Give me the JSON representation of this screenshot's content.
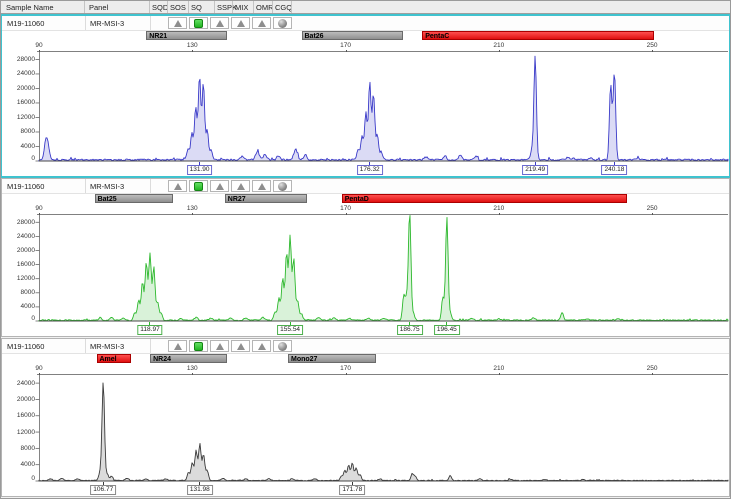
{
  "header": {
    "columns": [
      "Sample Name",
      "Panel",
      "SQD",
      "SOS",
      "SQ",
      "SSPK",
      "MIX",
      "OMR",
      "CGQ"
    ]
  },
  "colors": {
    "selection": "#3fc3cf",
    "marker_gray": "#a2a2a2",
    "marker_red": "#ee2020"
  },
  "panels": [
    {
      "sample_name": "M19-11060",
      "panel_name": "MR-MSI-3",
      "selected": true,
      "flags": [
        {
          "column": "SQD",
          "icon": "blank"
        },
        {
          "column": "SOS",
          "icon": "triangle-icon"
        },
        {
          "column": "SQ",
          "icon": "green-square-icon"
        },
        {
          "column": "SSPK",
          "icon": "triangle-icon"
        },
        {
          "column": "MIX",
          "icon": "triangle-icon"
        },
        {
          "column": "OMR",
          "icon": "triangle-icon"
        },
        {
          "column": "CGQ",
          "icon": "sphere-icon"
        }
      ],
      "markers": [
        {
          "label": "NR21",
          "range_bp": [
            118,
            139
          ],
          "color": "gray"
        },
        {
          "label": "Bat26",
          "range_bp": [
            158.5,
            185
          ],
          "color": "gray"
        },
        {
          "label": "PentaC",
          "range_bp": [
            190,
            250.5
          ],
          "color": "red"
        }
      ]
    },
    {
      "sample_name": "M19-11060",
      "panel_name": "MR-MSI-3",
      "selected": false,
      "flags": [
        {
          "column": "SQD",
          "icon": "blank"
        },
        {
          "column": "SOS",
          "icon": "triangle-icon"
        },
        {
          "column": "SQ",
          "icon": "green-square-icon"
        },
        {
          "column": "SSPK",
          "icon": "triangle-icon"
        },
        {
          "column": "MIX",
          "icon": "triangle-icon"
        },
        {
          "column": "OMR",
          "icon": "triangle-icon"
        },
        {
          "column": "CGQ",
          "icon": "sphere-icon"
        }
      ],
      "markers": [
        {
          "label": "Bat25",
          "range_bp": [
            104.5,
            125
          ],
          "color": "gray"
        },
        {
          "label": "NR27",
          "range_bp": [
            138.5,
            160
          ],
          "color": "gray"
        },
        {
          "label": "PentaD",
          "range_bp": [
            169,
            243.5
          ],
          "color": "red"
        }
      ]
    },
    {
      "sample_name": "M19-11060",
      "panel_name": "MR-MSI-3",
      "selected": false,
      "flags": [
        {
          "column": "SQD",
          "icon": "blank"
        },
        {
          "column": "SOS",
          "icon": "triangle-icon"
        },
        {
          "column": "SQ",
          "icon": "green-square-icon"
        },
        {
          "column": "SSPK",
          "icon": "triangle-icon"
        },
        {
          "column": "MIX",
          "icon": "triangle-icon"
        },
        {
          "column": "OMR",
          "icon": "triangle-icon"
        },
        {
          "column": "CGQ",
          "icon": "sphere-icon"
        }
      ],
      "markers": [
        {
          "label": "Amel",
          "range_bp": [
            105,
            114
          ],
          "color": "red"
        },
        {
          "label": "NR24",
          "range_bp": [
            119,
            139
          ],
          "color": "gray"
        },
        {
          "label": "Mono27",
          "range_bp": [
            155,
            178
          ],
          "color": "gray"
        }
      ]
    }
  ],
  "chart_data": [
    {
      "type": "line",
      "dye": "blue",
      "color": "#3a3ac8",
      "label_border": "#6a6ad0",
      "x_ticks": [
        90,
        130,
        170,
        210,
        250
      ],
      "x_range_bp": [
        90,
        270
      ],
      "y_ticks": [
        0,
        4000,
        8000,
        12000,
        16000,
        20000,
        24000,
        28000
      ],
      "y_max": 29500,
      "noise_amp": 550,
      "seed": 7,
      "peaks": [
        [
          92,
          6200,
          2.0
        ],
        [
          128.9,
          3000
        ],
        [
          129.9,
          7500
        ],
        [
          130.9,
          14500
        ],
        [
          131.9,
          23200
        ],
        [
          132.9,
          21000
        ],
        [
          133.9,
          8200
        ],
        [
          134.9,
          2600
        ],
        [
          143,
          900,
          1.6
        ],
        [
          147,
          2400,
          1.8
        ],
        [
          149,
          1600,
          1.6
        ],
        [
          152.5,
          1200,
          1.6
        ],
        [
          157,
          2900,
          1.8
        ],
        [
          159.5,
          1400,
          1.6
        ],
        [
          173.3,
          2800
        ],
        [
          174.3,
          6500
        ],
        [
          175.3,
          13200
        ],
        [
          176.32,
          21200
        ],
        [
          177.3,
          18300
        ],
        [
          178.3,
          6800
        ],
        [
          179.3,
          2200
        ],
        [
          191,
          800,
          1.6
        ],
        [
          196,
          1000,
          1.6
        ],
        [
          200,
          1400,
          1.6
        ],
        [
          204,
          900,
          1.6
        ],
        [
          218.6,
          2600
        ],
        [
          219.49,
          28800
        ],
        [
          228,
          700,
          1.6
        ],
        [
          234,
          600,
          1.6
        ],
        [
          239.2,
          20500
        ],
        [
          240.18,
          24200
        ],
        [
          246,
          500,
          1.6
        ]
      ],
      "peak_labels": [
        {
          "text": "131.90",
          "bp": 131.9
        },
        {
          "text": "176.32",
          "bp": 176.32
        },
        {
          "text": "219.49",
          "bp": 219.49
        },
        {
          "text": "240.18",
          "bp": 240.18
        }
      ]
    },
    {
      "type": "line",
      "dye": "green",
      "color": "#2db82d",
      "label_border": "#4db04d",
      "x_ticks": [
        90,
        130,
        170,
        210,
        250
      ],
      "x_range_bp": [
        90,
        270
      ],
      "y_ticks": [
        0,
        4000,
        8000,
        12000,
        16000,
        20000,
        24000,
        28000
      ],
      "y_max": 29500,
      "noise_amp": 380,
      "seed": 13,
      "peaks": [
        [
          106,
          600,
          1.6
        ],
        [
          109,
          800,
          1.6
        ],
        [
          112,
          600,
          1.6
        ],
        [
          115,
          2100
        ],
        [
          116,
          5600
        ],
        [
          117,
          10800
        ],
        [
          118,
          16200
        ],
        [
          118.97,
          18800
        ],
        [
          119.97,
          15200
        ],
        [
          120.97,
          5200
        ],
        [
          121.9,
          1900
        ],
        [
          127,
          600,
          1.6
        ],
        [
          131,
          800,
          1.6
        ],
        [
          135,
          700,
          1.6
        ],
        [
          140,
          600,
          1.6
        ],
        [
          144,
          700,
          1.6
        ],
        [
          148.5,
          800,
          1.6
        ],
        [
          151.6,
          2300
        ],
        [
          152.6,
          6200
        ],
        [
          153.6,
          11800
        ],
        [
          154.6,
          18800
        ],
        [
          155.54,
          23600
        ],
        [
          156.5,
          17400
        ],
        [
          157.5,
          5600
        ],
        [
          158.5,
          1900
        ],
        [
          163,
          700,
          1.6
        ],
        [
          167,
          600,
          1.6
        ],
        [
          171,
          500,
          1.6
        ],
        [
          176,
          600,
          1.6
        ],
        [
          180,
          500,
          1.6
        ],
        [
          185.2,
          6900
        ],
        [
          185.95,
          5900
        ],
        [
          186.75,
          30800
        ],
        [
          187.7,
          1900
        ],
        [
          195.4,
          6400
        ],
        [
          196.45,
          29200
        ],
        [
          197.4,
          1700
        ],
        [
          203,
          500,
          1.6
        ],
        [
          210,
          400,
          1.6
        ],
        [
          219,
          700,
          1.6
        ],
        [
          226.5,
          2300
        ],
        [
          233,
          400,
          1.6
        ],
        [
          241,
          350,
          1.6
        ]
      ],
      "peak_labels": [
        {
          "text": "118.97",
          "bp": 118.97
        },
        {
          "text": "155.54",
          "bp": 155.54
        },
        {
          "text": "186.75",
          "bp": 186.75
        },
        {
          "text": "196.45",
          "bp": 196.45
        }
      ]
    },
    {
      "type": "line",
      "dye": "black",
      "color": "#3a3a3a",
      "label_border": "#8a8a8a",
      "x_ticks": [
        90,
        130,
        170,
        210,
        250
      ],
      "x_range_bp": [
        90,
        270
      ],
      "y_ticks": [
        0,
        4000,
        8000,
        12000,
        16000,
        20000,
        24000
      ],
      "y_max": 25500,
      "noise_amp": 220,
      "seed": 21,
      "peaks": [
        [
          93,
          400,
          1.6
        ],
        [
          96,
          500,
          1.6
        ],
        [
          100,
          400,
          1.6
        ],
        [
          105.9,
          1900
        ],
        [
          106.77,
          24300
        ],
        [
          107.8,
          1600
        ],
        [
          108.9,
          1100
        ],
        [
          113,
          500,
          1.6
        ],
        [
          118,
          400,
          1.6
        ],
        [
          123,
          400,
          1.6
        ],
        [
          129,
          1900
        ],
        [
          130,
          4300
        ],
        [
          131,
          7300
        ],
        [
          131.98,
          8900
        ],
        [
          132.95,
          6300
        ],
        [
          133.9,
          2500
        ],
        [
          138,
          500,
          1.6
        ],
        [
          144,
          400,
          1.6
        ],
        [
          150,
          400,
          1.6
        ],
        [
          156,
          400,
          1.6
        ],
        [
          162,
          400,
          1.6
        ],
        [
          168.9,
          1100
        ],
        [
          169.8,
          2400
        ],
        [
          170.8,
          3700
        ],
        [
          171.78,
          4300
        ],
        [
          172.8,
          3100
        ],
        [
          173.8,
          1400
        ],
        [
          179,
          400,
          1.6
        ],
        [
          187.4,
          1700
        ],
        [
          188.2,
          1100
        ],
        [
          197.3,
          1200
        ],
        [
          205,
          400,
          1.6
        ],
        [
          213,
          350,
          1.6
        ],
        [
          222,
          300,
          1.6
        ],
        [
          232,
          300,
          1.6
        ]
      ],
      "peak_labels": [
        {
          "text": "106.77",
          "bp": 106.77
        },
        {
          "text": "131.98",
          "bp": 131.98
        },
        {
          "text": "171.78",
          "bp": 171.78
        }
      ]
    }
  ]
}
